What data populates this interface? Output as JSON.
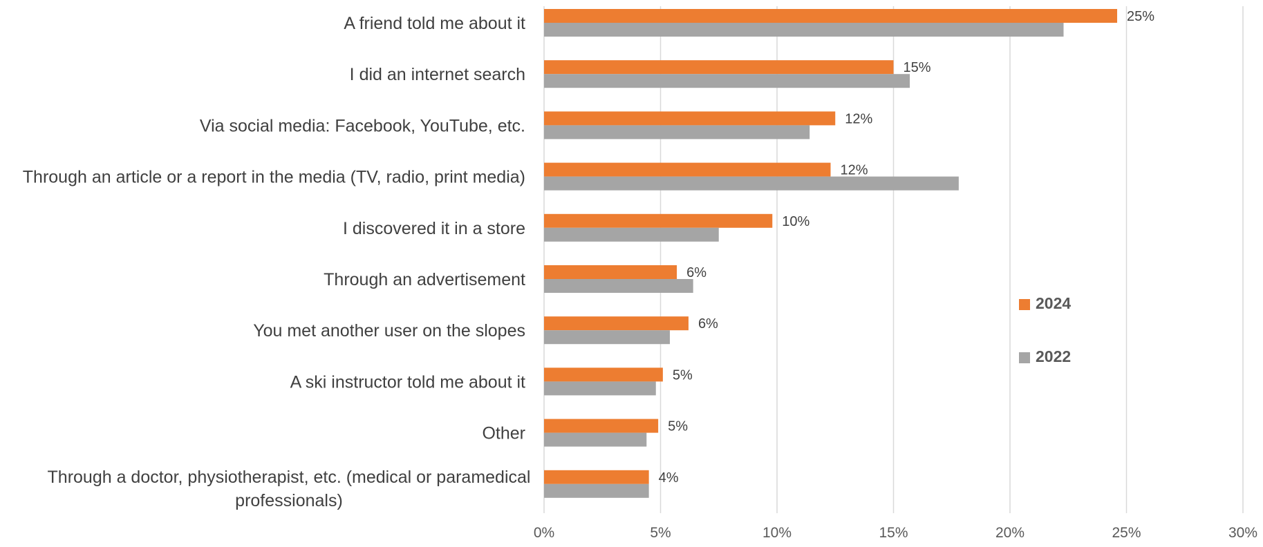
{
  "chart_data": {
    "type": "bar",
    "orientation": "horizontal",
    "categories": [
      "A friend told me about it",
      "I did an internet search",
      "Via social media: Facebook, YouTube, etc.",
      "Through an article or a report in the media (TV, radio, print media)",
      "I discovered it in a store",
      "Through an advertisement",
      "You met another user on the slopes",
      "A ski instructor told me about it",
      "Other",
      "Through a doctor, physiotherapist, etc. (medical or paramedical professionals)"
    ],
    "category_lines": [
      [
        "A friend told me about it"
      ],
      [
        "I did an internet search"
      ],
      [
        "Via social media: Facebook, YouTube, etc."
      ],
      [
        "Through an article or a report in the media (TV, radio, print media)"
      ],
      [
        "I discovered it in a store"
      ],
      [
        "Through an advertisement"
      ],
      [
        "You met another user on the slopes"
      ],
      [
        "A ski instructor told me about it"
      ],
      [
        "Other"
      ],
      [
        "Through a doctor, physiotherapist, etc. (medical or paramedical",
        "professionals)"
      ]
    ],
    "series": [
      {
        "name": "2024",
        "color": "#ed7d31",
        "values": [
          24.6,
          15.0,
          12.5,
          12.3,
          9.8,
          5.7,
          6.2,
          5.1,
          4.9,
          4.5
        ],
        "data_labels": [
          "25%",
          "15%",
          "12%",
          "12%",
          "10%",
          "6%",
          "6%",
          "5%",
          "5%",
          "4%"
        ]
      },
      {
        "name": "2022",
        "color": "#a5a5a5",
        "values": [
          22.3,
          15.7,
          11.4,
          17.8,
          7.5,
          6.4,
          5.4,
          4.8,
          4.4,
          4.5
        ]
      }
    ],
    "xlim": [
      0,
      30
    ],
    "x_ticks": [
      0,
      5,
      10,
      15,
      20,
      25,
      30
    ],
    "x_tick_labels": [
      "0%",
      "5%",
      "10%",
      "15%",
      "20%",
      "25%",
      "30%"
    ],
    "grid": true,
    "legend": "right",
    "title": "",
    "xlabel": "",
    "ylabel": ""
  }
}
